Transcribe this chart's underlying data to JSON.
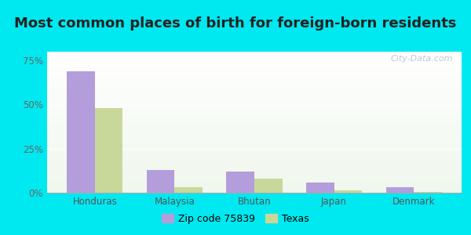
{
  "title": "Most common places of birth for foreign-born residents",
  "categories": [
    "Honduras",
    "Malaysia",
    "Bhutan",
    "Japan",
    "Denmark"
  ],
  "zip_values": [
    69,
    13,
    12,
    6,
    3
  ],
  "texas_values": [
    48,
    3,
    8,
    1.5,
    0.5
  ],
  "zip_color": "#b39ddb",
  "texas_color": "#c8d89a",
  "yticks": [
    0,
    25,
    50,
    75
  ],
  "ytick_labels": [
    "0%",
    "25%",
    "50%",
    "75%"
  ],
  "ylim": [
    0,
    80
  ],
  "background_outer": "#00e8f0",
  "background_inner": "#eaf8f0",
  "legend_zip": "Zip code 75839",
  "legend_texas": "Texas",
  "watermark": "City-Data.com",
  "title_fontsize": 13,
  "bar_width": 0.35,
  "figsize": [
    6.0,
    3.0
  ],
  "dpi": 100
}
